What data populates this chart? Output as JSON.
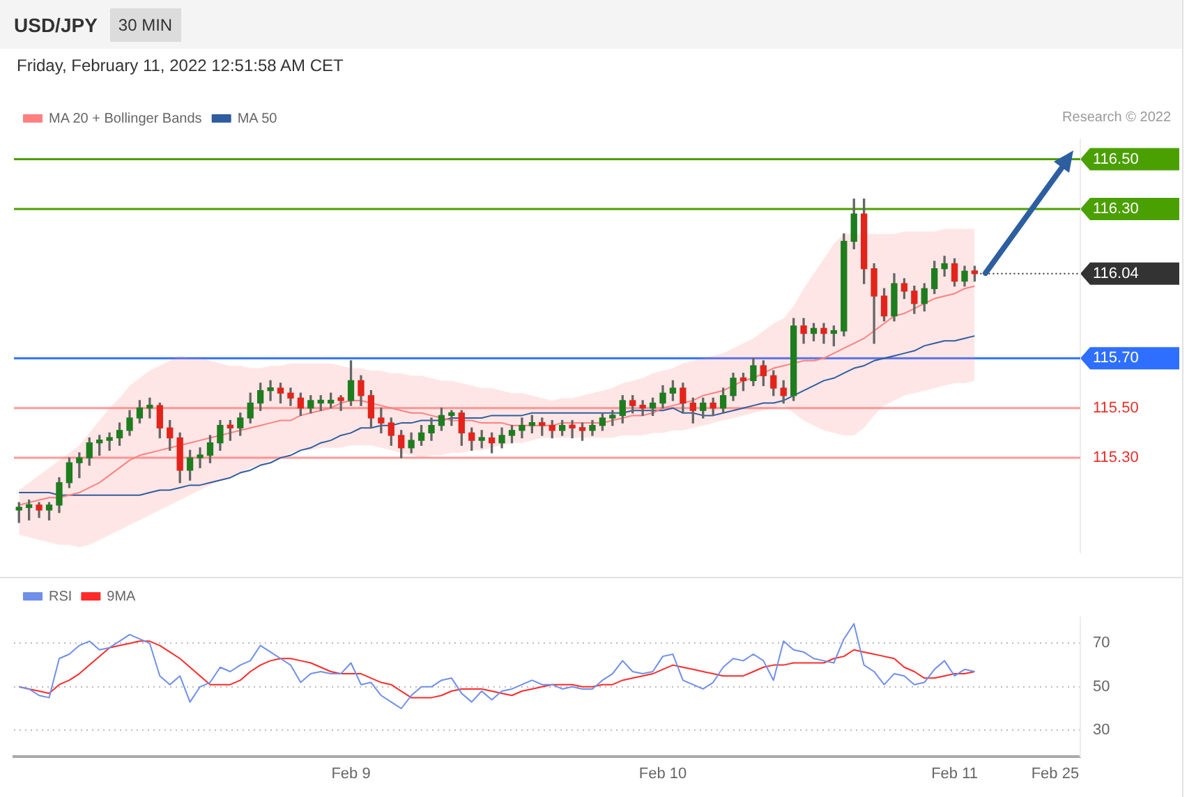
{
  "chart_data": [
    {
      "type": "candlestick",
      "title": "USD/JPY",
      "subtitle": "30 MIN",
      "annotations": [
        "Friday, February 11, 2022 12:51:58 AM CET",
        "Research © 2022"
      ],
      "categories": [
        null,
        null,
        null,
        null,
        null,
        null,
        null,
        null,
        null,
        null,
        null,
        null,
        null,
        null,
        null,
        null,
        null,
        null,
        null,
        null,
        null,
        null,
        null,
        null,
        null,
        null,
        null,
        null,
        null,
        null,
        null,
        null,
        null,
        null,
        null,
        null,
        null,
        null,
        null,
        null,
        null,
        null,
        null,
        null,
        null,
        null,
        null,
        null,
        null,
        null,
        null,
        null,
        null,
        null,
        null,
        null,
        null,
        null,
        null,
        null,
        null,
        null,
        null,
        null,
        null,
        null,
        null,
        null,
        null,
        null,
        null,
        null,
        null,
        null,
        null,
        null,
        null,
        null,
        null,
        null,
        null,
        null,
        null,
        null,
        null,
        null,
        null,
        null,
        null,
        null,
        null,
        null,
        null,
        null,
        null,
        null,
        null,
        null,
        null,
        null,
        null,
        null,
        null,
        null,
        null,
        null
      ],
      "colors": [
        "#1e7d1e",
        "#1e7d1e",
        "#e3241b",
        "#1e7d1e",
        "#1e7d1e",
        "#1e7d1e",
        "#1e7d1e",
        "#1e7d1e",
        "#1e7d1e",
        "#1e7d1e",
        "#1e7d1e",
        "#1e7d1e",
        "#1e7d1e",
        "#1e7d1e",
        "#e3241b",
        "#e3241b",
        "#e3241b",
        "#1e7d1e",
        "#1e7d1e",
        "#1e7d1e",
        "#1e7d1e",
        "#e3241b",
        "#1e7d1e",
        "#1e7d1e",
        "#1e7d1e",
        "#1e7d1e",
        "#e3241b",
        "#e3241b",
        "#e3241b",
        "#1e7d1e",
        "#1e7d1e",
        "#1e7d1e",
        "#e3241b",
        "#1e7d1e",
        "#e3241b",
        "#e3241b",
        "#e3241b",
        "#e3241b",
        "#e3241b",
        "#1e7d1e",
        "#1e7d1e",
        "#1e7d1e",
        "#1e7d1e",
        "#1e7d1e",
        "#e3241b",
        "#e3241b",
        "#1e7d1e",
        "#e3241b",
        "#1e7d1e",
        "#1e7d1e",
        "#1e7d1e",
        "#1e7d1e",
        "#e3241b",
        "#e3241b",
        "#1e7d1e",
        "#e3241b",
        "#e3241b",
        "#1e7d1e",
        "#1e7d1e",
        "#1e7d1e",
        "#1e7d1e",
        "#e3241b",
        "#e3241b",
        "#1e7d1e",
        "#1e7d1e",
        "#1e7d1e",
        "#e3241b",
        "#e3241b",
        "#1e7d1e",
        "#e3241b",
        "#1e7d1e",
        "#1e7d1e",
        "#e3241b",
        "#1e7d1e",
        "#e3241b",
        "#e3241b",
        "#e3241b",
        "#1e7d1e",
        "#e3241b",
        "#1e7d1e",
        "#e3241b",
        "#1e7d1e",
        "#1e7d1e",
        "#1e7d1e",
        "#e3241b",
        "#e3241b",
        "#e3241b",
        "#1e7d1e",
        "#e3241b",
        "#e3241b",
        "#1e7d1e",
        "#1e7d1e",
        "#1e7d1e",
        "#e3241b",
        "#1e7d1e",
        "#e3241b",
        null,
        null,
        null,
        null,
        null,
        null,
        null,
        null,
        null,
        null
      ],
      "ohlc": [
        [
          115.09,
          115.12,
          115.04,
          115.1
        ],
        [
          115.1,
          115.13,
          115.05,
          115.11
        ],
        [
          115.11,
          115.12,
          115.06,
          115.09
        ],
        [
          115.09,
          115.12,
          115.05,
          115.11
        ],
        [
          115.11,
          115.22,
          115.08,
          115.2
        ],
        [
          115.2,
          115.3,
          115.18,
          115.28
        ],
        [
          115.28,
          115.32,
          115.22,
          115.3
        ],
        [
          115.3,
          115.38,
          115.27,
          115.36
        ],
        [
          115.36,
          115.39,
          115.31,
          115.37
        ],
        [
          115.37,
          115.4,
          115.33,
          115.38
        ],
        [
          115.38,
          115.44,
          115.35,
          115.41
        ],
        [
          115.41,
          115.49,
          115.39,
          115.46
        ],
        [
          115.46,
          115.53,
          115.44,
          115.5
        ],
        [
          115.5,
          115.54,
          115.46,
          115.51
        ],
        [
          115.51,
          115.52,
          115.38,
          115.42
        ],
        [
          115.42,
          115.45,
          115.33,
          115.38
        ],
        [
          115.38,
          115.4,
          115.2,
          115.25
        ],
        [
          115.25,
          115.33,
          115.21,
          115.3
        ],
        [
          115.3,
          115.34,
          115.26,
          115.31
        ],
        [
          115.31,
          115.39,
          115.28,
          115.36
        ],
        [
          115.36,
          115.45,
          115.33,
          115.43
        ],
        [
          115.43,
          115.45,
          115.37,
          115.42
        ],
        [
          115.42,
          115.48,
          115.39,
          115.46
        ],
        [
          115.46,
          115.56,
          115.44,
          115.52
        ],
        [
          115.52,
          115.6,
          115.49,
          115.57
        ],
        [
          115.57,
          115.61,
          115.53,
          115.58
        ],
        [
          115.58,
          115.6,
          115.52,
          115.56
        ],
        [
          115.56,
          115.58,
          115.51,
          115.54
        ],
        [
          115.54,
          115.56,
          115.47,
          115.5
        ],
        [
          115.5,
          115.55,
          115.48,
          115.53
        ],
        [
          115.52,
          115.55,
          115.49,
          115.53
        ],
        [
          115.52,
          115.56,
          115.5,
          115.53
        ],
        [
          115.54,
          115.55,
          115.49,
          115.53
        ],
        [
          115.53,
          115.69,
          115.51,
          115.61
        ],
        [
          115.61,
          115.63,
          115.51,
          115.55
        ],
        [
          115.55,
          115.57,
          115.42,
          115.46
        ],
        [
          115.46,
          115.5,
          115.4,
          115.44
        ],
        [
          115.44,
          115.46,
          115.35,
          115.39
        ],
        [
          115.39,
          115.41,
          115.3,
          115.34
        ],
        [
          115.34,
          115.4,
          115.32,
          115.37
        ],
        [
          115.37,
          115.43,
          115.35,
          115.4
        ],
        [
          115.4,
          115.46,
          115.37,
          115.43
        ],
        [
          115.43,
          115.5,
          115.41,
          115.47
        ],
        [
          115.47,
          115.49,
          115.43,
          115.48
        ],
        [
          115.48,
          115.49,
          115.35,
          115.4
        ],
        [
          115.4,
          115.42,
          115.33,
          115.37
        ],
        [
          115.37,
          115.41,
          115.34,
          115.38
        ],
        [
          115.38,
          115.4,
          115.32,
          115.36
        ],
        [
          115.36,
          115.42,
          115.34,
          115.39
        ],
        [
          115.39,
          115.43,
          115.36,
          115.41
        ],
        [
          115.41,
          115.46,
          115.38,
          115.43
        ],
        [
          115.43,
          115.47,
          115.4,
          115.44
        ],
        [
          115.44,
          115.46,
          115.39,
          115.43
        ],
        [
          115.43,
          115.45,
          115.38,
          115.41
        ],
        [
          115.41,
          115.45,
          115.39,
          115.43
        ],
        [
          115.43,
          115.45,
          115.38,
          115.42
        ],
        [
          115.42,
          115.44,
          115.37,
          115.41
        ],
        [
          115.41,
          115.45,
          115.39,
          115.43
        ],
        [
          115.43,
          115.48,
          115.41,
          115.46
        ],
        [
          115.46,
          115.49,
          115.43,
          115.47
        ],
        [
          115.47,
          115.55,
          115.44,
          115.53
        ],
        [
          115.53,
          115.55,
          115.48,
          115.51
        ],
        [
          115.51,
          115.53,
          115.47,
          115.5
        ],
        [
          115.5,
          115.54,
          115.47,
          115.52
        ],
        [
          115.52,
          115.59,
          115.5,
          115.56
        ],
        [
          115.56,
          115.61,
          115.53,
          115.58
        ],
        [
          115.58,
          115.6,
          115.48,
          115.52
        ],
        [
          115.52,
          115.54,
          115.44,
          115.49
        ],
        [
          115.49,
          115.54,
          115.46,
          115.52
        ],
        [
          115.52,
          115.54,
          115.47,
          115.5
        ],
        [
          115.5,
          115.58,
          115.48,
          115.55
        ],
        [
          115.55,
          115.64,
          115.53,
          115.62
        ],
        [
          115.62,
          115.64,
          115.57,
          115.61
        ],
        [
          115.61,
          115.7,
          115.59,
          115.67
        ],
        [
          115.67,
          115.69,
          115.59,
          115.63
        ],
        [
          115.63,
          115.65,
          115.55,
          115.58
        ],
        [
          115.58,
          115.61,
          115.52,
          115.55
        ],
        [
          115.55,
          115.86,
          115.53,
          115.83
        ],
        [
          115.83,
          115.86,
          115.76,
          115.8
        ],
        [
          115.8,
          115.84,
          115.77,
          115.82
        ],
        [
          115.82,
          115.84,
          115.76,
          115.8
        ],
        [
          115.8,
          115.83,
          115.75,
          115.81
        ],
        [
          115.81,
          116.2,
          115.79,
          116.17
        ],
        [
          116.17,
          116.34,
          116.14,
          116.28
        ],
        [
          116.28,
          116.34,
          116.0,
          116.06
        ],
        [
          116.06,
          116.08,
          115.76,
          115.95
        ],
        [
          115.95,
          115.98,
          115.85,
          115.87
        ],
        [
          115.87,
          116.04,
          115.85,
          116.0
        ],
        [
          116.0,
          116.02,
          115.94,
          115.97
        ],
        [
          115.97,
          115.99,
          115.88,
          115.92
        ],
        [
          115.92,
          116.0,
          115.89,
          115.98
        ],
        [
          115.98,
          116.09,
          115.96,
          116.06
        ],
        [
          116.06,
          116.11,
          116.03,
          116.08
        ],
        [
          116.08,
          116.1,
          115.99,
          116.01
        ],
        [
          116.01,
          116.07,
          115.99,
          116.05
        ],
        [
          116.05,
          116.07,
          116.01,
          116.04
        ],
        null,
        null,
        null,
        null,
        null,
        null,
        null,
        null,
        null,
        null
      ],
      "series": [
        {
          "name": "MA 20 + Bollinger Bands",
          "type": "line",
          "color": "#ff8080",
          "values": [
            115.11,
            115.12,
            115.13,
            115.14,
            115.14,
            115.15,
            115.16,
            115.18,
            115.2,
            115.23,
            115.26,
            115.29,
            115.31,
            115.32,
            115.33,
            115.34,
            115.35,
            115.36,
            115.37,
            115.38,
            115.39,
            115.4,
            115.41,
            115.42,
            115.43,
            115.44,
            115.45,
            115.45,
            115.47,
            115.48,
            115.49,
            115.5,
            115.52,
            115.53,
            115.53,
            115.52,
            115.51,
            115.5,
            115.49,
            115.48,
            115.48,
            115.47,
            115.46,
            115.45,
            115.45,
            115.45,
            115.44,
            115.44,
            115.44,
            115.43,
            115.43,
            115.43,
            115.43,
            115.43,
            115.44,
            115.44,
            115.44,
            115.44,
            115.44,
            115.45,
            115.46,
            115.47,
            115.47,
            115.48,
            115.5,
            115.51,
            115.52,
            115.53,
            115.55,
            115.56,
            115.57,
            115.59,
            115.61,
            115.62,
            115.64,
            115.66,
            115.67,
            115.68,
            115.69,
            115.69,
            115.7,
            115.72,
            115.74,
            115.76,
            115.78,
            115.81,
            115.84,
            115.87,
            115.88,
            115.9,
            115.92,
            115.94,
            115.95,
            115.96,
            115.98,
            115.99,
            null,
            null,
            null,
            null,
            null,
            null,
            null,
            null,
            null,
            null
          ],
          "upper": [
            115.17,
            115.2,
            115.23,
            115.26,
            115.29,
            115.32,
            115.35,
            115.4,
            115.45,
            115.5,
            115.54,
            115.59,
            115.62,
            115.65,
            115.67,
            115.69,
            115.71,
            115.7,
            115.7,
            115.69,
            115.68,
            115.67,
            115.67,
            115.66,
            115.66,
            115.67,
            115.67,
            115.68,
            115.68,
            115.68,
            115.68,
            115.68,
            115.67,
            115.66,
            115.66,
            115.65,
            115.65,
            115.64,
            115.64,
            115.63,
            115.63,
            115.62,
            115.61,
            115.61,
            115.6,
            115.59,
            115.58,
            115.58,
            115.57,
            115.56,
            115.56,
            115.55,
            115.54,
            115.53,
            115.54,
            115.54,
            115.55,
            115.56,
            115.57,
            115.58,
            115.6,
            115.61,
            115.62,
            115.64,
            115.65,
            115.66,
            115.68,
            115.69,
            115.7,
            115.71,
            115.72,
            115.74,
            115.76,
            115.78,
            115.81,
            115.84,
            115.86,
            115.91,
            115.98,
            116.04,
            116.1,
            116.16,
            116.2,
            116.2,
            116.2,
            116.2,
            116.2,
            116.2,
            116.21,
            116.21,
            116.21,
            116.21,
            116.22,
            116.22,
            116.22,
            116.22,
            null,
            null,
            null,
            null,
            null,
            null,
            null,
            null,
            null,
            null
          ],
          "lower": [
            114.99,
            114.98,
            114.97,
            114.96,
            114.95,
            114.95,
            114.94,
            114.95,
            114.97,
            114.99,
            115.01,
            115.03,
            115.05,
            115.07,
            115.09,
            115.11,
            115.13,
            115.15,
            115.17,
            115.19,
            115.21,
            115.22,
            115.24,
            115.26,
            115.27,
            115.29,
            115.3,
            115.32,
            115.33,
            115.33,
            115.34,
            115.34,
            115.34,
            115.35,
            115.35,
            115.35,
            115.34,
            115.33,
            115.32,
            115.31,
            115.3,
            115.31,
            115.31,
            115.32,
            115.32,
            115.33,
            115.33,
            115.34,
            115.35,
            115.36,
            115.36,
            115.37,
            115.38,
            115.38,
            115.38,
            115.38,
            115.38,
            115.38,
            115.38,
            115.38,
            115.39,
            115.39,
            115.39,
            115.4,
            115.4,
            115.41,
            115.41,
            115.42,
            115.43,
            115.44,
            115.45,
            115.46,
            115.47,
            115.48,
            115.49,
            115.5,
            115.51,
            115.48,
            115.45,
            115.43,
            115.41,
            115.4,
            115.39,
            115.39,
            115.42,
            115.47,
            115.51,
            115.53,
            115.55,
            115.56,
            115.57,
            115.58,
            115.59,
            115.6,
            115.6,
            115.61,
            null,
            null,
            null,
            null,
            null,
            null,
            null,
            null,
            null,
            null
          ]
        },
        {
          "name": "MA 50",
          "type": "line",
          "color": "#2f5d9e",
          "values": [
            115.16,
            115.16,
            115.16,
            115.16,
            115.15,
            115.15,
            115.15,
            115.15,
            115.15,
            115.15,
            115.15,
            115.15,
            115.15,
            115.16,
            115.17,
            115.17,
            115.18,
            115.19,
            115.19,
            115.2,
            115.21,
            115.22,
            115.24,
            115.25,
            115.27,
            115.28,
            115.3,
            115.31,
            115.33,
            115.34,
            115.36,
            115.37,
            115.39,
            115.4,
            115.42,
            115.42,
            115.43,
            115.43,
            115.44,
            115.44,
            115.45,
            115.45,
            115.45,
            115.46,
            115.46,
            115.46,
            115.46,
            115.47,
            115.47,
            115.47,
            115.47,
            115.48,
            115.48,
            115.48,
            115.48,
            115.48,
            115.48,
            115.48,
            115.48,
            115.48,
            115.48,
            115.49,
            115.49,
            115.49,
            115.49,
            115.5,
            115.48,
            115.48,
            115.47,
            115.47,
            115.48,
            115.49,
            115.5,
            115.51,
            115.52,
            115.52,
            115.53,
            115.55,
            115.57,
            115.59,
            115.61,
            115.62,
            115.64,
            115.66,
            115.67,
            115.69,
            115.7,
            115.71,
            115.72,
            115.73,
            115.75,
            115.76,
            115.77,
            115.77,
            115.78,
            115.79,
            null,
            null,
            null,
            null,
            null,
            null,
            null,
            null,
            null,
            null
          ]
        }
      ],
      "ylim": [
        114.92,
        116.58
      ],
      "yticks": [
        {
          "value": 115.3,
          "label": "115.30"
        },
        {
          "value": 115.5,
          "label": "115.50"
        },
        {
          "value": 115.7,
          "label": "115.70"
        },
        {
          "value": 116.04,
          "label": "116.04"
        },
        {
          "value": 116.3,
          "label": "116.30"
        },
        {
          "value": 116.5,
          "label": "116.50"
        }
      ],
      "ref_lines": [
        {
          "axis": "y",
          "value": 116.5,
          "color": "#4aa000"
        },
        {
          "axis": "y",
          "value": 116.3,
          "color": "#4aa000"
        },
        {
          "axis": "y",
          "value": 116.04,
          "color": "#333333",
          "line_style": "dotted"
        },
        {
          "axis": "y",
          "value": 115.7,
          "color": "#2f6fff"
        },
        {
          "axis": "y",
          "value": 115.5,
          "color": "#ff9a9a"
        },
        {
          "axis": "y",
          "value": 115.3,
          "color": "#ff9a9a"
        }
      ],
      "legend": "top left",
      "tick_labels": "y"
    },
    {
      "type": "line",
      "categories": [
        null,
        null,
        null,
        null,
        null,
        null,
        null,
        null,
        null,
        null,
        null,
        null,
        null,
        null,
        null,
        null,
        null,
        null,
        null,
        null,
        null,
        null,
        null,
        null,
        null,
        null,
        null,
        null,
        null,
        null,
        null,
        null,
        null,
        "Feb 9",
        null,
        null,
        null,
        null,
        null,
        null,
        null,
        null,
        null,
        null,
        null,
        null,
        null,
        null,
        null,
        null,
        null,
        null,
        null,
        null,
        null,
        null,
        null,
        null,
        null,
        null,
        null,
        null,
        null,
        null,
        "Feb 10",
        null,
        null,
        null,
        null,
        null,
        null,
        null,
        null,
        null,
        null,
        null,
        null,
        null,
        null,
        null,
        null,
        null,
        null,
        null,
        null,
        null,
        null,
        null,
        null,
        null,
        null,
        null,
        null,
        "Feb 11",
        null,
        null,
        null,
        null,
        null,
        null,
        null,
        null,
        null,
        "Feb 25",
        null,
        null
      ],
      "series": [
        {
          "name": "RSI",
          "color": "#6f8fe8",
          "values": [
            50,
            49,
            46,
            45,
            63,
            65,
            69,
            71,
            67,
            68,
            71,
            74,
            72,
            70,
            55,
            51,
            55,
            43,
            50,
            52,
            59,
            57,
            60,
            62,
            69,
            66,
            63,
            60,
            52,
            56,
            57,
            56,
            56,
            61,
            51,
            52,
            46,
            43,
            40,
            46,
            50,
            50,
            53,
            54,
            47,
            43,
            48,
            44,
            48,
            49,
            51,
            53,
            51,
            51,
            49,
            50,
            49,
            49,
            53,
            56,
            62,
            57,
            56,
            57,
            64,
            65,
            53,
            51,
            49,
            52,
            59,
            63,
            62,
            65,
            62,
            53,
            71,
            67,
            66,
            63,
            62,
            61,
            72,
            79,
            60,
            57,
            51,
            56,
            55,
            51,
            52,
            58,
            62,
            55,
            58,
            57,
            null,
            null,
            null,
            null,
            null,
            null,
            null,
            null,
            null,
            null
          ]
        },
        {
          "name": "9MA",
          "color": "#ff2a2a",
          "values": [
            50,
            49,
            48,
            47,
            51,
            53,
            56,
            60,
            64,
            68,
            69,
            70,
            71,
            71,
            69,
            66,
            63,
            59,
            55,
            51,
            51,
            51,
            53,
            57,
            60,
            62,
            63,
            63,
            62,
            61,
            59,
            57,
            56,
            56,
            56,
            54,
            52,
            51,
            48,
            45,
            45,
            45,
            46,
            48,
            49,
            49,
            49,
            48,
            47,
            46,
            48,
            49,
            50,
            51,
            51,
            51,
            50,
            50,
            51,
            51,
            53,
            54,
            55,
            56,
            58,
            60,
            59,
            58,
            57,
            56,
            55,
            55,
            55,
            57,
            59,
            60,
            60,
            61,
            61,
            61,
            61,
            63,
            64,
            67,
            66,
            65,
            64,
            63,
            59,
            57,
            54,
            54,
            55,
            56,
            56,
            57,
            null,
            null,
            null,
            null,
            null,
            null,
            null,
            null,
            null,
            null
          ]
        }
      ],
      "ylim": [
        18,
        82
      ],
      "yticks": [
        30,
        50,
        70
      ],
      "grid": "y",
      "legend": "top left"
    }
  ]
}
